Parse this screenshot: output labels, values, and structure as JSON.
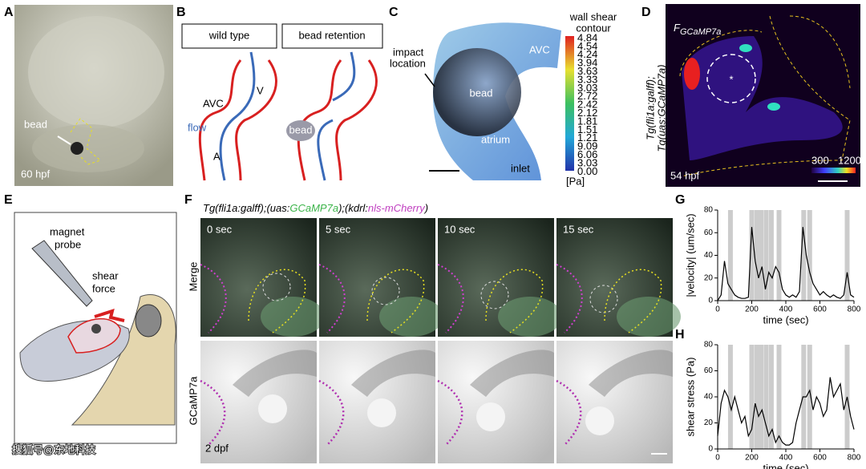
{
  "panels": {
    "a": {
      "label": "A",
      "bead": "bead",
      "stage": "60 hpf"
    },
    "b": {
      "label": "B",
      "wild_type": "wild type",
      "bead_retention": "bead retention",
      "avc": "AVC",
      "v": "V",
      "flow": "flow",
      "a": "A",
      "bead": "bead"
    },
    "c": {
      "label": "C",
      "colorbar_title": [
        "wall shear",
        "contour"
      ],
      "impact": [
        "impact",
        "location"
      ],
      "avc": "AVC",
      "bead": "bead",
      "atrium": "atrium",
      "inlet": "inlet",
      "unit": "[Pa]",
      "colorbar_labels": [
        "4.84",
        "4.54",
        "4.24",
        "3.94",
        "3.63",
        "3.33",
        "3.03",
        "2.72",
        "2.42",
        "2.12",
        "1.81",
        "1.51",
        "1.21",
        "9.09",
        "6.06",
        "3.03",
        "0.00"
      ]
    },
    "d": {
      "label": "D",
      "signal": "F",
      "signal_sub": "GCaMP7a",
      "line1": "Tg(fli1a:galff);",
      "line2": "Tg(uas:GCaMP7a)",
      "stage": "54 hpf",
      "star": "*",
      "cb_min": "300",
      "cb_max": "1200"
    },
    "e": {
      "label": "E",
      "probe": [
        "magnet",
        "probe"
      ],
      "force": [
        "shear",
        "force"
      ]
    },
    "f": {
      "label": "F",
      "title_parts": [
        "Tg(fli1a:galff);(uas:",
        "GCaMP7a",
        ");(kdrl:",
        "nls-mCherry",
        ")"
      ],
      "rows": [
        "Merge",
        "GCaMP7a"
      ],
      "times": [
        "0 sec",
        "5 sec",
        "10 sec",
        "15 sec"
      ],
      "stage": "2 dpf"
    }
  },
  "chart_data": [
    {
      "type": "line",
      "label": "G",
      "ylabel": "|velocity| (um/sec)",
      "xlabel": "time (sec)",
      "color": "#000000",
      "x": [
        0,
        20,
        40,
        60,
        80,
        100,
        120,
        140,
        160,
        180,
        200,
        220,
        240,
        260,
        280,
        300,
        320,
        340,
        360,
        380,
        400,
        420,
        440,
        460,
        480,
        500,
        520,
        540,
        560,
        580,
        600,
        620,
        640,
        660,
        680,
        700,
        720,
        740,
        760,
        780,
        800
      ],
      "values": [
        0,
        5,
        35,
        15,
        10,
        5,
        3,
        2,
        2,
        3,
        65,
        35,
        20,
        30,
        10,
        25,
        20,
        30,
        25,
        10,
        5,
        3,
        5,
        3,
        8,
        65,
        40,
        25,
        15,
        10,
        5,
        8,
        5,
        3,
        5,
        3,
        2,
        5,
        25,
        5,
        3
      ],
      "events": [
        75,
        200,
        230,
        255,
        285,
        315,
        360,
        505,
        540,
        760
      ],
      "xlim": [
        0,
        800
      ],
      "ylim": [
        0,
        80
      ],
      "xticks": [
        0,
        200,
        400,
        600,
        800
      ],
      "yticks": [
        0,
        20,
        40,
        60,
        80
      ]
    },
    {
      "type": "line",
      "label": "H",
      "ylabel": "shear stress (Pa)",
      "xlabel": "time (sec)",
      "color": "#000000",
      "x": [
        0,
        20,
        40,
        60,
        80,
        100,
        120,
        140,
        160,
        180,
        200,
        220,
        240,
        260,
        280,
        300,
        320,
        340,
        360,
        380,
        400,
        420,
        440,
        460,
        480,
        500,
        520,
        540,
        560,
        580,
        600,
        620,
        640,
        660,
        680,
        700,
        720,
        740,
        760,
        780,
        800
      ],
      "values": [
        10,
        35,
        45,
        40,
        30,
        40,
        30,
        20,
        25,
        10,
        15,
        35,
        25,
        30,
        20,
        10,
        15,
        5,
        10,
        5,
        3,
        3,
        5,
        20,
        30,
        40,
        40,
        45,
        30,
        40,
        35,
        25,
        30,
        55,
        40,
        45,
        50,
        30,
        40,
        25,
        15
      ],
      "events": [
        75,
        200,
        230,
        255,
        285,
        315,
        360,
        505,
        540,
        760
      ],
      "xlim": [
        0,
        800
      ],
      "ylim": [
        0,
        80
      ],
      "xticks": [
        0,
        200,
        400,
        600,
        800
      ],
      "yticks": [
        0,
        20,
        40,
        60,
        80
      ]
    }
  ],
  "watermark": "搜狐号@东地科技"
}
